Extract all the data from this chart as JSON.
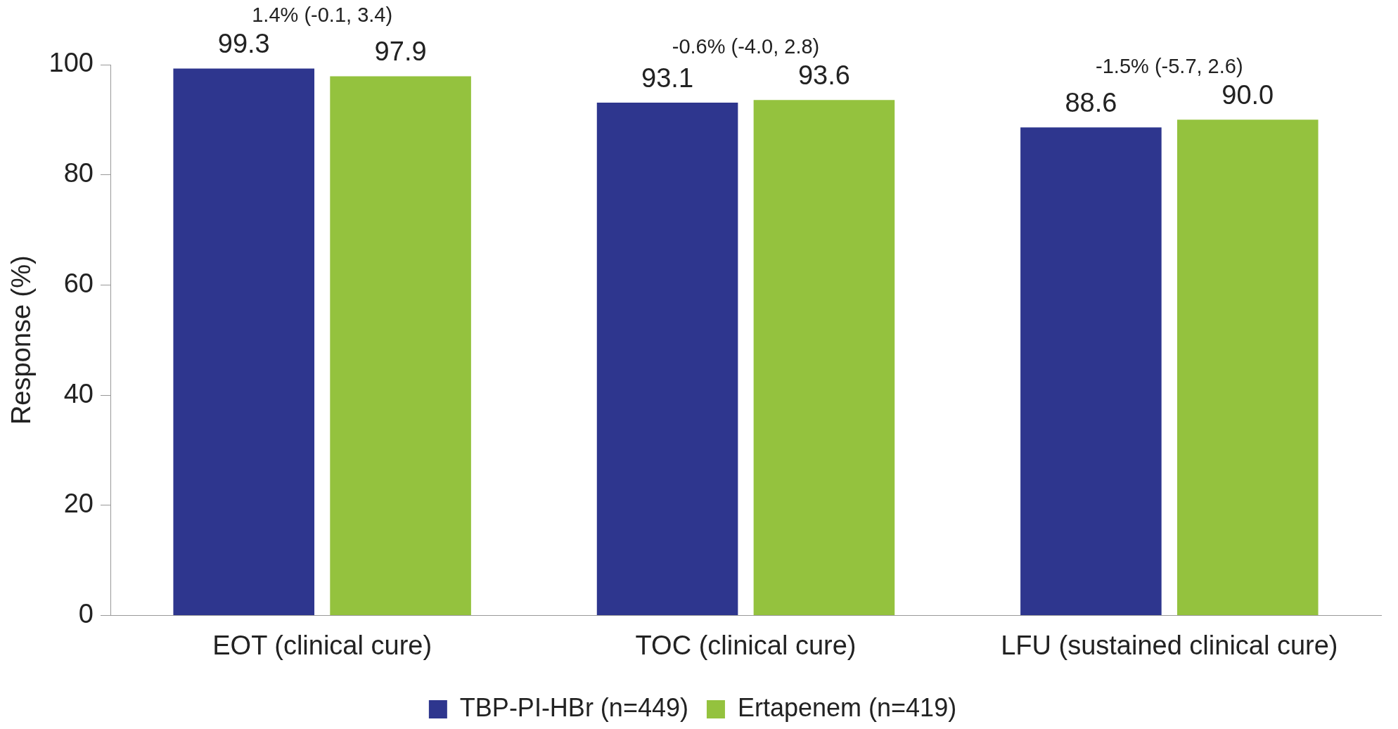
{
  "chart_data": {
    "type": "bar",
    "ylabel": "Response (%)",
    "categories": [
      "EOT (clinical cure)",
      "TOC (clinical cure)",
      "LFU (sustained clinical cure)"
    ],
    "series": [
      {
        "name": "TBP-PI-HBr (n=449)",
        "color": "#2e368e",
        "values": [
          99.3,
          93.1,
          88.6
        ],
        "value_labels": [
          "99.3",
          "93.1",
          "88.6"
        ]
      },
      {
        "name": "Ertapenem (n=419)",
        "color": "#94c23e",
        "values": [
          97.9,
          93.6,
          90.0
        ],
        "value_labels": [
          "97.9",
          "93.6",
          "90.0"
        ]
      }
    ],
    "ylim": [
      0,
      100
    ],
    "yticks": [
      0,
      20,
      40,
      60,
      80,
      100
    ],
    "grid": false,
    "legend": "bottom",
    "annotations": [
      "1.4% (-0.1, 3.4)",
      "-0.6% (-4.0, 2.8)",
      "-1.5% (-5.7, 2.6)"
    ]
  }
}
